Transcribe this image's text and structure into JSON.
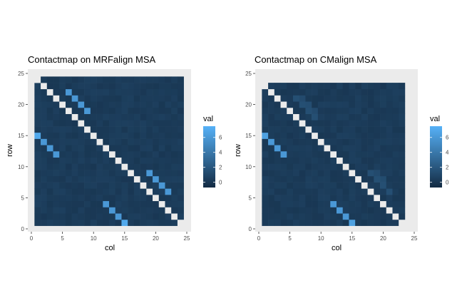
{
  "chart_data": [
    {
      "type": "heatmap",
      "title": "Contactmap on MRFalign MSA",
      "xlabel": "col",
      "ylabel": "row",
      "xlim": [
        0,
        25
      ],
      "ylim": [
        0,
        25
      ],
      "xticks": [
        0,
        5,
        10,
        15,
        20,
        25
      ],
      "yticks": [
        0,
        5,
        10,
        15,
        20,
        25
      ],
      "grid_size": 24,
      "background_value": 0.3,
      "diagonal_value": null,
      "contacts": [
        {
          "x": 1,
          "y": 15,
          "value": 7
        },
        {
          "x": 2,
          "y": 14,
          "value": 6
        },
        {
          "x": 3,
          "y": 13,
          "value": 6
        },
        {
          "x": 4,
          "y": 12,
          "value": 6
        },
        {
          "x": 6,
          "y": 22,
          "value": 6
        },
        {
          "x": 7,
          "y": 21,
          "value": 6
        },
        {
          "x": 8,
          "y": 20,
          "value": 6
        },
        {
          "x": 9,
          "y": 19,
          "value": 6
        },
        {
          "x": 12,
          "y": 4,
          "value": 6
        },
        {
          "x": 13,
          "y": 3,
          "value": 6
        },
        {
          "x": 14,
          "y": 2,
          "value": 6
        },
        {
          "x": 15,
          "y": 1,
          "value": 7
        },
        {
          "x": 19,
          "y": 9,
          "value": 6
        },
        {
          "x": 20,
          "y": 8,
          "value": 6
        },
        {
          "x": 21,
          "y": 7,
          "value": 6
        },
        {
          "x": 22,
          "y": 6,
          "value": 6
        }
      ],
      "legend": {
        "title": "val",
        "ticks": [
          0,
          2,
          4,
          6
        ],
        "range": [
          -0.7,
          7.5
        ]
      }
    },
    {
      "type": "heatmap",
      "title": "Contactmap on CMalign MSA",
      "xlabel": "col",
      "ylabel": "row",
      "xlim": [
        0,
        25
      ],
      "ylim": [
        0,
        25
      ],
      "xticks": [
        0,
        5,
        10,
        15,
        20,
        25
      ],
      "yticks": [
        0,
        5,
        10,
        15,
        20,
        25
      ],
      "grid_size": 23,
      "background_value": 0.3,
      "diagonal_value": null,
      "contacts": [
        {
          "x": 1,
          "y": 15,
          "value": 6.5
        },
        {
          "x": 2,
          "y": 14,
          "value": 6
        },
        {
          "x": 3,
          "y": 13,
          "value": 6
        },
        {
          "x": 4,
          "y": 12,
          "value": 6
        },
        {
          "x": 12,
          "y": 4,
          "value": 6
        },
        {
          "x": 13,
          "y": 3,
          "value": 6
        },
        {
          "x": 14,
          "y": 2,
          "value": 6
        },
        {
          "x": 15,
          "y": 1,
          "value": 6.5
        },
        {
          "x": 6,
          "y": 21,
          "value": 1.5
        },
        {
          "x": 7,
          "y": 20,
          "value": 1.5
        },
        {
          "x": 8,
          "y": 19,
          "value": 1.5
        },
        {
          "x": 9,
          "y": 18,
          "value": 1.5
        },
        {
          "x": 7,
          "y": 21,
          "value": 1.2
        },
        {
          "x": 8,
          "y": 20,
          "value": 1.4
        },
        {
          "x": 9,
          "y": 19,
          "value": 1.2
        },
        {
          "x": 18,
          "y": 9,
          "value": 1.5
        },
        {
          "x": 19,
          "y": 8,
          "value": 1.5
        },
        {
          "x": 20,
          "y": 7,
          "value": 1.5
        },
        {
          "x": 21,
          "y": 6,
          "value": 1.5
        },
        {
          "x": 19,
          "y": 9,
          "value": 1.2
        },
        {
          "x": 20,
          "y": 8,
          "value": 1.3
        }
      ],
      "legend": {
        "title": "val",
        "ticks": [
          0,
          2,
          4,
          6
        ],
        "range": [
          -0.7,
          7.5
        ]
      }
    }
  ]
}
